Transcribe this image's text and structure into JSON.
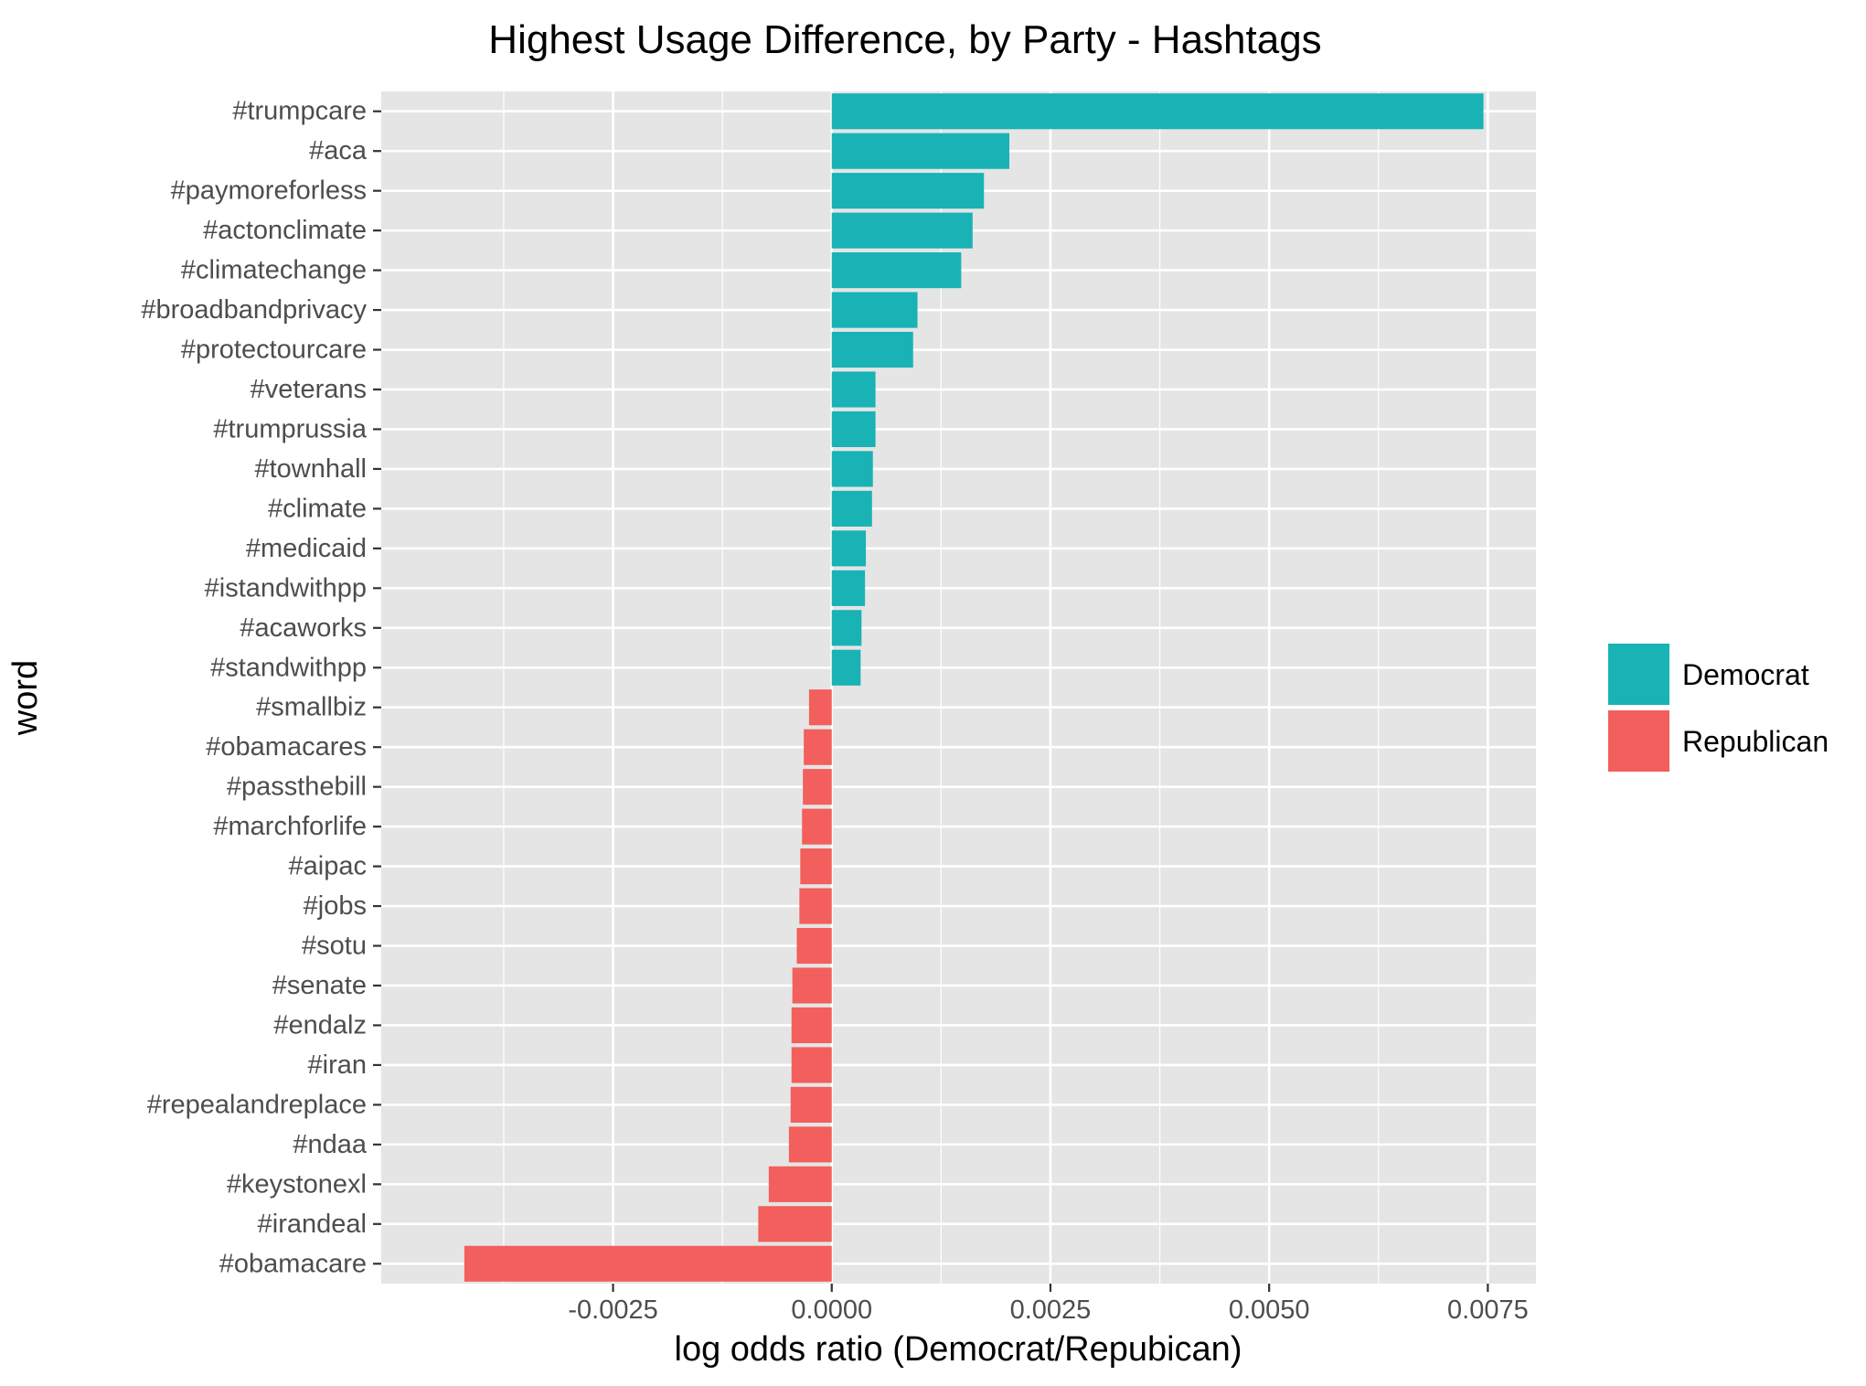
{
  "chart_data": {
    "type": "bar",
    "orientation": "horizontal",
    "title": "Highest Usage Difference, by Party - Hashtags",
    "xlabel": "log odds ratio (Democrat/Repubican)",
    "ylabel": "word",
    "xlim": [
      -0.00515,
      0.00805
    ],
    "x_ticks": [
      -0.0025,
      0.0,
      0.0025,
      0.005,
      0.0075
    ],
    "x_tick_labels": [
      "-0.0025",
      "0.0000",
      "0.0025",
      "0.0050",
      "0.0075"
    ],
    "grid": true,
    "legend_position": "right",
    "legend": [
      {
        "name": "Democrat",
        "color": "#19b2b5"
      },
      {
        "name": "Republican",
        "color": "#f25f5c"
      }
    ],
    "categories": [
      "#trumpcare",
      "#aca",
      "#paymoreforless",
      "#actonclimate",
      "#climatechange",
      "#broadbandprivacy",
      "#protectourcare",
      "#veterans",
      "#trumprussia",
      "#townhall",
      "#climate",
      "#medicaid",
      "#istandwithpp",
      "#acaworks",
      "#standwithpp",
      "#smallbiz",
      "#obamacares",
      "#passthebill",
      "#marchforlife",
      "#aipac",
      "#jobs",
      "#sotu",
      "#senate",
      "#endalz",
      "#iran",
      "#repealandreplace",
      "#ndaa",
      "#keystonexl",
      "#irandeal",
      "#obamacare"
    ],
    "values": [
      0.00745,
      0.00203,
      0.00174,
      0.00161,
      0.00148,
      0.00098,
      0.00093,
      0.0005,
      0.0005,
      0.00047,
      0.00046,
      0.00039,
      0.00038,
      0.00034,
      0.00033,
      -0.00026,
      -0.00032,
      -0.00033,
      -0.00034,
      -0.00036,
      -0.00037,
      -0.0004,
      -0.00045,
      -0.00046,
      -0.00046,
      -0.00047,
      -0.00049,
      -0.00072,
      -0.00084,
      -0.0042
    ],
    "party": [
      "Democrat",
      "Democrat",
      "Democrat",
      "Democrat",
      "Democrat",
      "Democrat",
      "Democrat",
      "Democrat",
      "Democrat",
      "Democrat",
      "Democrat",
      "Democrat",
      "Democrat",
      "Democrat",
      "Democrat",
      "Republican",
      "Republican",
      "Republican",
      "Republican",
      "Republican",
      "Republican",
      "Republican",
      "Republican",
      "Republican",
      "Republican",
      "Republican",
      "Republican",
      "Republican",
      "Republican",
      "Republican"
    ],
    "colors": {
      "panel_background": "#e5e5e5",
      "grid": "#ffffff"
    }
  }
}
